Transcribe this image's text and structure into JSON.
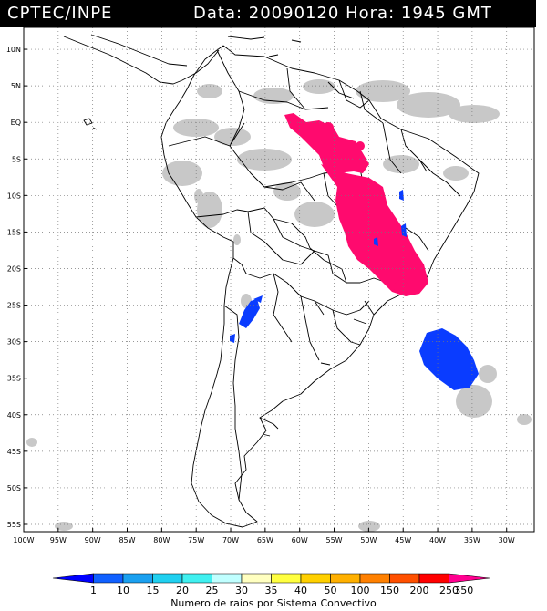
{
  "header": {
    "source": "CPTEC/INPE",
    "datetime": "Data: 20090120 Hora: 1945 GMT"
  },
  "axes": {
    "lat_labels": [
      "10N",
      "5N",
      "EQ",
      "5S",
      "10S",
      "15S",
      "20S",
      "25S",
      "30S",
      "35S",
      "40S",
      "45S",
      "50S",
      "55S"
    ],
    "lat_values": [
      10,
      5,
      0,
      -5,
      -10,
      -15,
      -20,
      -25,
      -30,
      -35,
      -40,
      -45,
      -50,
      -55
    ],
    "lon_labels": [
      "100W",
      "95W",
      "90W",
      "85W",
      "80W",
      "75W",
      "70W",
      "65W",
      "60W",
      "55W",
      "50W",
      "45W",
      "40W",
      "35W",
      "30W"
    ],
    "lon_values": [
      -100,
      -95,
      -90,
      -85,
      -80,
      -75,
      -70,
      -65,
      -60,
      -55,
      -50,
      -45,
      -40,
      -35,
      -30
    ],
    "lon_range": [
      -100,
      -26
    ],
    "lat_range": [
      13,
      -56
    ]
  },
  "colorbar": {
    "values": [
      "1",
      "10",
      "15",
      "20",
      "25",
      "30",
      "35",
      "40",
      "50",
      "100",
      "150",
      "200",
      "250",
      "350"
    ],
    "colors": [
      "#0000ff",
      "#1060ff",
      "#1aa0f0",
      "#20d0f0",
      "#40f0f0",
      "#c0ffff",
      "#ffffc0",
      "#ffff40",
      "#ffd000",
      "#ffb000",
      "#ff8000",
      "#ff5000",
      "#ff0000",
      "#ff0090"
    ],
    "caption": "Numero de raios por Sistema Convectivo"
  },
  "colors": {
    "cloud": "#c8c8c8",
    "lightning_high": "#ff0a6e",
    "lightning_low": "#0a3cff"
  }
}
